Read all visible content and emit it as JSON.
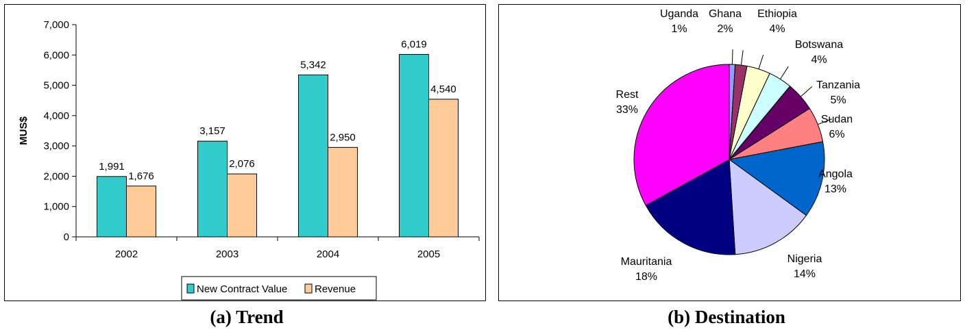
{
  "captions": {
    "a": "(a) Trend",
    "b": "(b) Destination"
  },
  "chart_data": [
    {
      "type": "bar",
      "title": "",
      "xlabel": "",
      "ylabel": "MUS$",
      "ylim": [
        0,
        7000
      ],
      "yticks": [
        "0",
        "1,000",
        "2,000",
        "3,000",
        "4,000",
        "5,000",
        "6,000",
        "7,000"
      ],
      "categories": [
        "2002",
        "2003",
        "2004",
        "2005"
      ],
      "series": [
        {
          "name": "New Contract Value",
          "color": "#33CCCC",
          "values": [
            1991,
            3157,
            5342,
            6019
          ],
          "labels": [
            "1,991",
            "3,157",
            "5,342",
            "6,019"
          ]
        },
        {
          "name": "Revenue",
          "color": "#FFCC99",
          "values": [
            1676,
            2076,
            2950,
            4540
          ],
          "labels": [
            "1,676",
            "2,076",
            "2,950",
            "4,540"
          ]
        }
      ],
      "grid": false,
      "legend": "bottom"
    },
    {
      "type": "pie",
      "slices": [
        {
          "name": "Uganda",
          "value": 1,
          "label": "1%",
          "color": "#9999FF"
        },
        {
          "name": "Ghana",
          "value": 2,
          "label": "2%",
          "color": "#993366"
        },
        {
          "name": "Ethiopia",
          "value": 4,
          "label": "4%",
          "color": "#FFFFCC"
        },
        {
          "name": "Botswana",
          "value": 4,
          "label": "4%",
          "color": "#CCFFFF"
        },
        {
          "name": "Tanzania",
          "value": 5,
          "label": "5%",
          "color": "#660066"
        },
        {
          "name": "Sudan",
          "value": 6,
          "label": "6%",
          "color": "#FF8080"
        },
        {
          "name": "Angola",
          "value": 13,
          "label": "13%",
          "color": "#0066CC"
        },
        {
          "name": "Nigeria",
          "value": 14,
          "label": "14%",
          "color": "#CCCCFF"
        },
        {
          "name": "Mauritania",
          "value": 18,
          "label": "18%",
          "color": "#000080"
        },
        {
          "name": "Rest",
          "value": 33,
          "label": "33%",
          "color": "#FF00FF"
        }
      ]
    }
  ]
}
